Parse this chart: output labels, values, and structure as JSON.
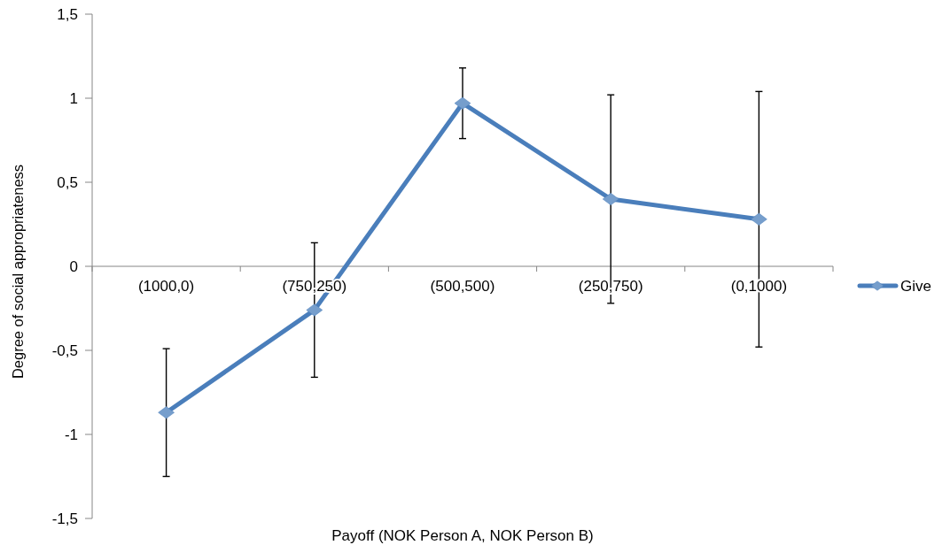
{
  "chart_data": {
    "type": "line",
    "xlabel": "Payoff (NOK Person A, NOK Person B)",
    "ylabel": "Degree of social appropriateness",
    "categories": [
      "(1000,0)",
      "(750,250)",
      "(500,500)",
      "(250,750)",
      "(0,1000)"
    ],
    "series": [
      {
        "name": "Give",
        "color": "#4a7ebb",
        "values": [
          -0.87,
          -0.26,
          0.97,
          0.4,
          0.28
        ],
        "errors": [
          0.38,
          0.4,
          0.21,
          0.62,
          0.76
        ]
      }
    ],
    "ylim": [
      -1.5,
      1.5
    ],
    "yticks": [
      {
        "value": -1.5,
        "label": "-1,5"
      },
      -1,
      {
        "value": -0.5,
        "label": "-0,5"
      },
      0,
      {
        "value": 0.5,
        "label": "0,5"
      },
      1,
      {
        "value": 1.5,
        "label": "1,5"
      }
    ],
    "legend": "right",
    "marker": "diamond"
  }
}
